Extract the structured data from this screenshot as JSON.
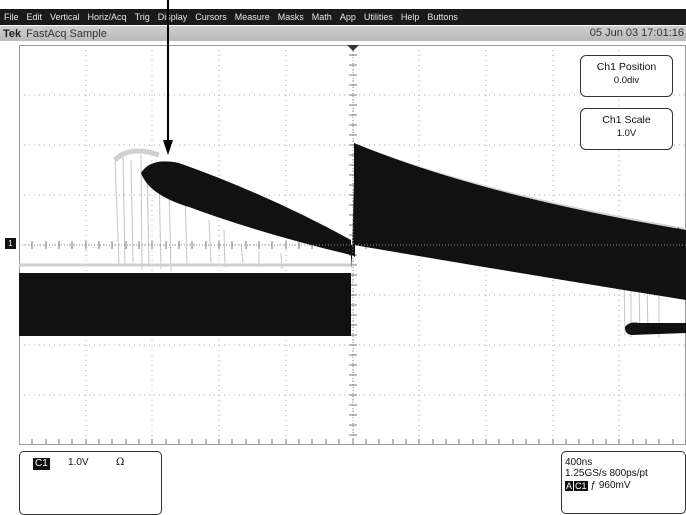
{
  "menu": [
    "File",
    "Edit",
    "Vertical",
    "Horiz/Acq",
    "Trig",
    "Display",
    "Cursors",
    "Measure",
    "Masks",
    "Math",
    "App",
    "Utilities",
    "Help",
    "Buttons"
  ],
  "title": {
    "brand": "Tek",
    "mode": "FastAcq Sample",
    "timestamp": "05 Jun 03 17:01:16"
  },
  "readouts": {
    "ch1_position": {
      "label": "Ch1 Position",
      "value": "0.0div"
    },
    "ch1_scale": {
      "label": "Ch1 Scale",
      "value": "1.0V"
    }
  },
  "channel_marker": "1",
  "channel_panel": {
    "tag": "C1",
    "scale": "1.0V",
    "impedance": "Ω"
  },
  "horizontal_panel": {
    "timebase": "400ns",
    "sample": "1.25GS/s 800ps/pt",
    "trig_src_a": "A",
    "trig_src_c": "C1",
    "trig_level": "ƒ 960mV"
  },
  "colors": {
    "menubar": "#1a1a1a",
    "trace": "#111111",
    "persistence": "#bdbdbd",
    "grid": "#9a9a9a"
  }
}
